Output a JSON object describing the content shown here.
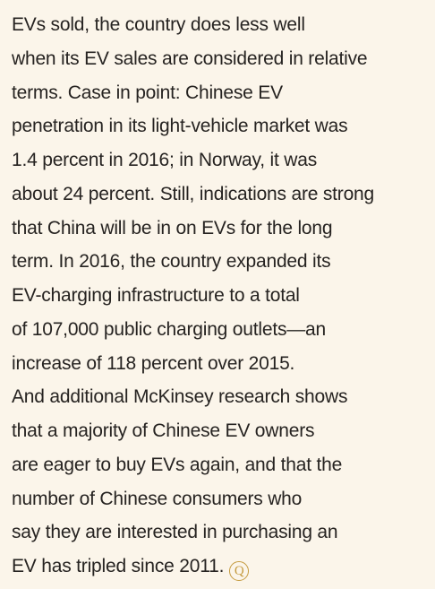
{
  "paragraph": {
    "lines": [
      "EVs sold, the country does less well",
      "when its EV sales are considered in relative",
      "terms. Case in point: Chinese EV",
      "penetration in its light-vehicle market was",
      "1.4 percent in 2016; in Norway, it was",
      "about 24 percent. Still, indications are strong",
      "that China will be in on EVs for the long",
      "term. In 2016, the country expanded its",
      "EV-charging infrastructure to a total",
      "of 107,000 public charging outlets—an",
      "increase of 118 percent over 2015.",
      "And additional McKinsey research shows",
      "that a majority of Chinese EV owners",
      "are eager to buy EVs again, and that the",
      "number of Chinese consumers who",
      "say they are interested in purchasing an",
      "EV has tripled since 2011."
    ],
    "end_mark": "Q"
  }
}
